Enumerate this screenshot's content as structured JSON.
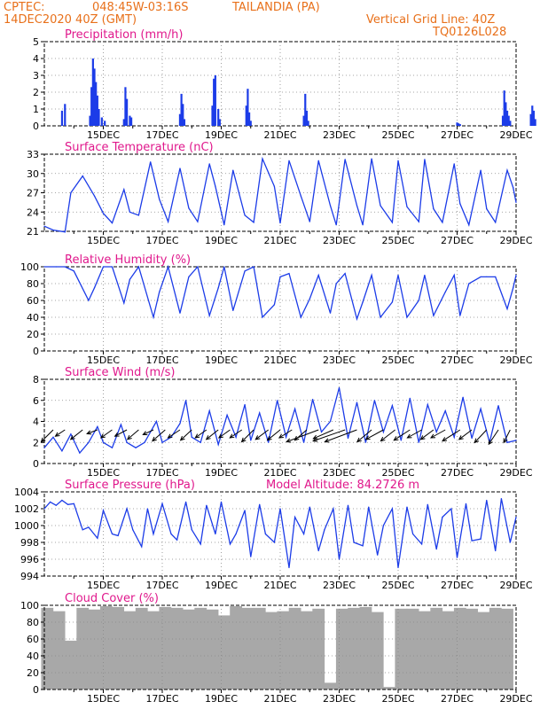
{
  "header": {
    "source": "CPTEC:",
    "coords": "048:45W-03:16S",
    "location": "TAILANDIA (PA)",
    "date": "14DEC2020 40Z (GMT)",
    "grid_note": "Vertical Grid Line: 40Z",
    "code": "TQ0126L028"
  },
  "colors": {
    "header": "#e8701a",
    "title": "#e0188c",
    "line": "#1c3ce8",
    "bar": "#1c3ce8",
    "cloud": "#a8a8a8",
    "wind": "#000000",
    "grid": "#777777"
  },
  "x_axis": {
    "range_days": [
      13.0,
      29.0
    ],
    "ticks": [
      15,
      17,
      19,
      21,
      23,
      25,
      27,
      29
    ],
    "tick_labels": [
      "15DEC",
      "17DEC",
      "19DEC",
      "21DEC",
      "23DEC",
      "25DEC",
      "27DEC",
      "29DEC"
    ]
  },
  "chart_data": [
    {
      "id": "precip",
      "type": "bar",
      "title": "Precipitation (mm/h)",
      "ylim": [
        0,
        5
      ],
      "yticks": [
        0,
        1,
        2,
        3,
        4,
        5
      ],
      "x": [
        13.6,
        13.7,
        14.55,
        14.6,
        14.65,
        14.7,
        14.75,
        14.8,
        14.85,
        14.95,
        15.05,
        15.7,
        15.75,
        15.8,
        15.9,
        15.95,
        17.6,
        17.65,
        17.7,
        17.75,
        18.7,
        18.75,
        18.8,
        18.9,
        18.95,
        19.85,
        19.9,
        19.95,
        20.0,
        21.8,
        21.85,
        21.9,
        21.95,
        27.0,
        27.05,
        27.1,
        28.55,
        28.6,
        28.65,
        28.7,
        28.75,
        28.8,
        29.5,
        29.55,
        29.6,
        29.65
      ],
      "values": [
        0.9,
        1.3,
        0.6,
        2.3,
        4.0,
        3.4,
        2.6,
        1.8,
        1.0,
        0.5,
        0.3,
        0.4,
        2.3,
        1.6,
        0.6,
        0.5,
        0.7,
        1.9,
        1.3,
        0.4,
        1.2,
        2.8,
        3.0,
        1.0,
        0.4,
        1.2,
        2.2,
        0.8,
        0.3,
        0.6,
        1.9,
        0.9,
        0.3,
        0.2,
        0.15,
        0.1,
        0.6,
        2.1,
        1.4,
        0.9,
        0.6,
        0.3,
        0.7,
        1.2,
        0.9,
        0.4
      ]
    },
    {
      "id": "temp",
      "type": "line",
      "title": "Surface Temperature (nC)",
      "ylim": [
        21,
        33
      ],
      "yticks": [
        21,
        24,
        27,
        30,
        33
      ],
      "x": [
        13.0,
        13.3,
        13.7,
        13.9,
        14.3,
        14.7,
        15.0,
        15.3,
        15.7,
        15.9,
        16.2,
        16.6,
        16.9,
        17.2,
        17.6,
        17.9,
        18.2,
        18.6,
        18.8,
        19.1,
        19.4,
        19.8,
        20.1,
        20.4,
        20.8,
        21.0,
        21.3,
        21.7,
        22.0,
        22.3,
        22.7,
        22.9,
        23.2,
        23.6,
        23.8,
        24.1,
        24.4,
        24.8,
        25.0,
        25.3,
        25.7,
        25.9,
        26.2,
        26.5,
        26.9,
        27.1,
        27.4,
        27.8,
        28.0,
        28.3,
        28.7,
        28.9,
        29.0
      ],
      "values": [
        21.8,
        21.2,
        20.9,
        27.0,
        29.6,
        26.5,
        23.8,
        22.3,
        27.5,
        24.0,
        23.5,
        31.8,
        26.0,
        22.5,
        30.8,
        24.6,
        22.5,
        31.5,
        28.0,
        22.0,
        30.5,
        23.5,
        22.4,
        32.3,
        28.0,
        22.3,
        32.0,
        26.5,
        22.5,
        32.0,
        25.0,
        22.0,
        32.2,
        25.0,
        22.0,
        32.3,
        25.0,
        22.4,
        32.0,
        24.8,
        22.5,
        32.2,
        24.5,
        22.4,
        31.5,
        25.3,
        22.0,
        30.5,
        24.5,
        22.4,
        30.5,
        27.8,
        25.5
      ]
    },
    {
      "id": "rh",
      "type": "line",
      "title": "Relative Humidity (%)",
      "ylim": [
        0,
        100
      ],
      "yticks": [
        0,
        20,
        40,
        60,
        80,
        100
      ],
      "x": [
        13.0,
        13.4,
        13.7,
        14.0,
        14.5,
        14.7,
        15.0,
        15.3,
        15.7,
        15.9,
        16.2,
        16.7,
        16.9,
        17.2,
        17.6,
        17.9,
        18.2,
        18.6,
        18.9,
        19.1,
        19.4,
        19.8,
        20.1,
        20.4,
        20.8,
        21.0,
        21.3,
        21.7,
        22.0,
        22.3,
        22.7,
        22.9,
        23.2,
        23.6,
        23.8,
        24.1,
        24.4,
        24.8,
        25.0,
        25.3,
        25.7,
        25.9,
        26.2,
        26.6,
        26.9,
        27.1,
        27.4,
        27.8,
        28.0,
        28.3,
        28.7,
        28.9,
        29.0
      ],
      "values": [
        100,
        100,
        100,
        95,
        60,
        75,
        100,
        100,
        57,
        85,
        100,
        40,
        70,
        100,
        45,
        88,
        100,
        42,
        75,
        100,
        48,
        95,
        100,
        40,
        55,
        88,
        92,
        40,
        62,
        90,
        45,
        80,
        92,
        38,
        58,
        90,
        40,
        58,
        90,
        40,
        60,
        90,
        42,
        70,
        90,
        42,
        80,
        88,
        88,
        88,
        50,
        75,
        90
      ]
    },
    {
      "id": "wind",
      "type": "line",
      "title": "Surface Wind (m/s)",
      "ylim": [
        0,
        8
      ],
      "yticks": [
        0,
        2,
        4,
        6,
        8
      ],
      "x": [
        13.0,
        13.3,
        13.6,
        13.9,
        14.2,
        14.5,
        14.8,
        15.0,
        15.3,
        15.6,
        15.8,
        16.1,
        16.4,
        16.8,
        17.0,
        17.3,
        17.6,
        17.8,
        18.0,
        18.3,
        18.6,
        18.9,
        19.2,
        19.5,
        19.8,
        20.0,
        20.3,
        20.6,
        20.9,
        21.2,
        21.5,
        21.8,
        22.1,
        22.4,
        22.7,
        23.0,
        23.3,
        23.6,
        23.9,
        24.2,
        24.5,
        24.8,
        25.1,
        25.4,
        25.7,
        26.0,
        26.3,
        26.6,
        26.9,
        27.2,
        27.5,
        27.8,
        28.1,
        28.4,
        28.7,
        29.0
      ],
      "values": [
        1.5,
        2.5,
        1.2,
        2.8,
        1.0,
        2.0,
        3.5,
        2.0,
        1.5,
        3.7,
        2.0,
        1.5,
        2.0,
        4.0,
        2.0,
        2.5,
        3.8,
        6.0,
        2.5,
        2.0,
        5.0,
        1.8,
        4.6,
        2.5,
        5.6,
        2.2,
        4.8,
        2.0,
        6.0,
        2.5,
        5.2,
        2.0,
        6.1,
        3.0,
        4.0,
        7.2,
        2.4,
        5.8,
        2.0,
        6.0,
        3.0,
        5.5,
        2.2,
        6.2,
        2.0,
        5.6,
        3.0,
        5.0,
        2.5,
        6.3,
        2.4,
        5.2,
        2.0,
        5.5,
        2.0,
        2.2
      ]
    },
    {
      "id": "wind_arrows",
      "type": "vector",
      "x": [
        13.3,
        13.7,
        14.3,
        14.8,
        15.3,
        15.8,
        16.2,
        16.7,
        17.1,
        17.6,
        18.0,
        18.5,
        18.9,
        19.3,
        19.7,
        20.1,
        20.6,
        21.0,
        21.4,
        21.9,
        22.3,
        22.8,
        23.2,
        23.6,
        24.1,
        24.5,
        24.9,
        25.4,
        25.8,
        26.2,
        26.6,
        27.1,
        27.5,
        28.0,
        28.4,
        28.8
      ],
      "u": [
        -1.5,
        -1.2,
        -1.5,
        -1.3,
        -1.4,
        -1.5,
        -1.4,
        -1.3,
        -1.6,
        -1.5,
        -1.4,
        -1.4,
        -1.5,
        -1.4,
        -1.5,
        -1.5,
        -1.6,
        -1.6,
        -1.6,
        -1.5,
        -4.0,
        -2.5,
        -4.0,
        -4.0,
        -1.8,
        -2.2,
        -1.8,
        -2.0,
        -1.8,
        -1.6,
        -1.8,
        -2.2,
        -1.6,
        -1.5,
        -1.2,
        -0.8
      ],
      "v": [
        -1.5,
        -0.8,
        -1.2,
        -0.5,
        -1.0,
        -0.8,
        -1.2,
        -0.6,
        -1.4,
        -1.0,
        -1.3,
        -1.0,
        -1.2,
        -1.0,
        -1.0,
        -1.5,
        -1.2,
        -1.3,
        -1.0,
        -1.3,
        -1.5,
        -1.1,
        -1.4,
        -1.5,
        -1.5,
        -1.2,
        -1.4,
        -1.3,
        -1.0,
        -1.2,
        -1.0,
        -1.4,
        -1.2,
        -1.6,
        -1.8,
        -1.6
      ]
    },
    {
      "id": "pressure",
      "type": "line",
      "title": "Surface Pressure (hPa)",
      "annotation": "Model Altitude: 84.2726 m",
      "ylim": [
        994,
        1004
      ],
      "yticks": [
        994,
        996,
        998,
        1000,
        1002,
        1004
      ],
      "x": [
        13.0,
        13.2,
        13.4,
        13.6,
        13.8,
        14.0,
        14.3,
        14.5,
        14.8,
        15.0,
        15.3,
        15.5,
        15.8,
        16.0,
        16.3,
        16.5,
        16.7,
        17.0,
        17.3,
        17.5,
        17.8,
        18.0,
        18.3,
        18.5,
        18.8,
        19.0,
        19.3,
        19.5,
        19.8,
        20.0,
        20.3,
        20.5,
        20.8,
        21.0,
        21.3,
        21.5,
        21.8,
        22.0,
        22.3,
        22.5,
        22.8,
        23.0,
        23.3,
        23.5,
        23.8,
        24.0,
        24.3,
        24.5,
        24.8,
        25.0,
        25.3,
        25.5,
        25.8,
        26.0,
        26.3,
        26.5,
        26.8,
        27.0,
        27.3,
        27.5,
        27.8,
        28.0,
        28.3,
        28.5,
        28.8,
        29.0
      ],
      "values": [
        1002.0,
        1002.8,
        1002.4,
        1003.0,
        1002.5,
        1002.6,
        999.5,
        999.8,
        998.5,
        1001.8,
        999.0,
        998.8,
        1002.0,
        999.5,
        997.5,
        1002.0,
        999.0,
        1002.6,
        999.0,
        998.3,
        1002.8,
        999.5,
        997.8,
        1002.4,
        999.0,
        1002.8,
        997.8,
        999.0,
        1001.8,
        996.3,
        1002.5,
        999.0,
        998.0,
        1002.0,
        995.0,
        1001.0,
        999.0,
        1002.2,
        997.0,
        999.5,
        1002.0,
        996.0,
        1002.4,
        998.0,
        997.6,
        1002.2,
        996.5,
        1000.0,
        1002.0,
        995.0,
        1002.2,
        999.0,
        997.8,
        1002.5,
        997.2,
        1001.0,
        1002.0,
        996.2,
        1002.6,
        998.2,
        998.4,
        1003.0,
        997.0,
        1003.2,
        998.0,
        1001.0
      ]
    },
    {
      "id": "cloud",
      "type": "bar",
      "title": "Cloud Cover (%)",
      "ylim": [
        0,
        100
      ],
      "yticks": [
        0,
        20,
        40,
        60,
        80,
        100
      ],
      "x": [
        13.1,
        13.5,
        13.9,
        14.3,
        14.7,
        15.1,
        15.5,
        15.9,
        16.3,
        16.7,
        17.1,
        17.5,
        17.9,
        18.3,
        18.7,
        19.1,
        19.5,
        19.9,
        20.3,
        20.7,
        21.1,
        21.5,
        21.9,
        22.3,
        22.7,
        23.1,
        23.5,
        23.9,
        24.3,
        24.7,
        25.1,
        25.5,
        25.9,
        26.3,
        26.7,
        27.1,
        27.5,
        27.9,
        28.3,
        28.7
      ],
      "values": [
        97,
        93,
        58,
        97,
        95,
        99,
        98,
        93,
        97,
        93,
        98,
        97,
        95,
        97,
        95,
        88,
        99,
        97,
        97,
        92,
        93,
        97,
        93,
        96,
        8,
        96,
        97,
        98,
        92,
        3,
        96,
        96,
        93,
        97,
        93,
        97,
        96,
        92,
        97,
        96
      ]
    }
  ]
}
